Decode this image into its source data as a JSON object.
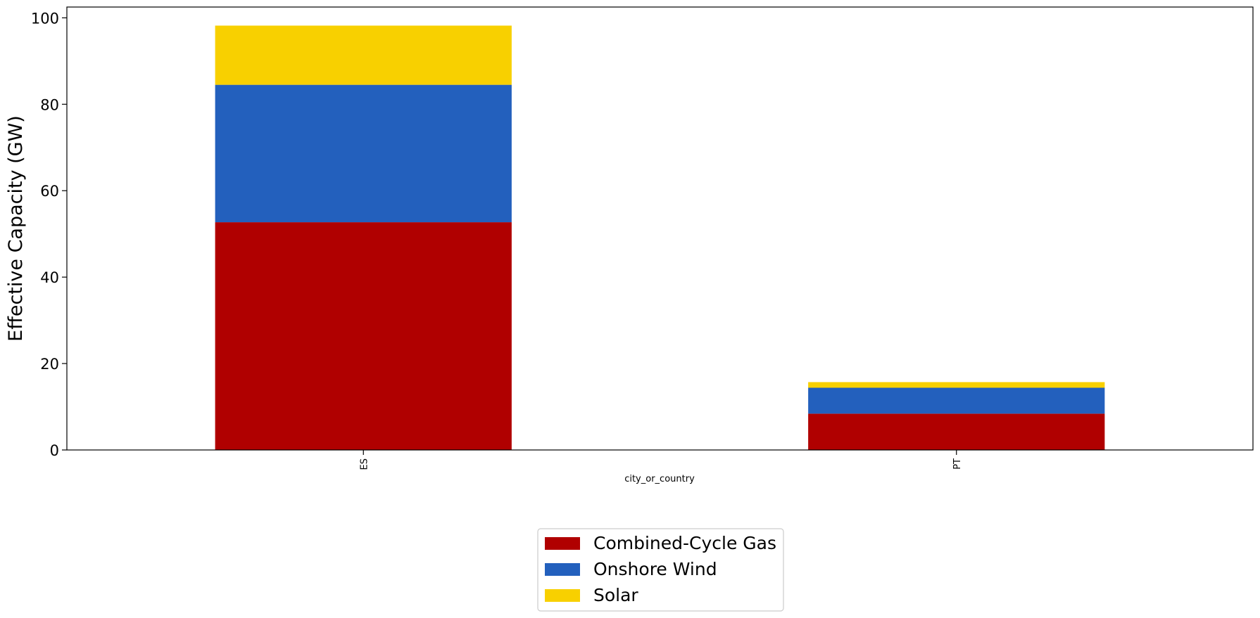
{
  "chart_data": {
    "type": "bar",
    "stacked": true,
    "title": "",
    "xlabel": "city_or_country",
    "ylabel": "Effective Capacity (GW)",
    "categories": [
      "ES",
      "PT"
    ],
    "series": [
      {
        "name": "Combined-Cycle Gas",
        "color": "#b00000",
        "values": [
          52.7,
          8.4
        ]
      },
      {
        "name": "Onshore Wind",
        "color": "#2360bd",
        "values": [
          31.8,
          6.0
        ]
      },
      {
        "name": "Solar",
        "color": "#f8d000",
        "values": [
          13.7,
          1.3
        ]
      }
    ],
    "ylim": [
      0,
      102.5
    ],
    "yticks": [
      0,
      20,
      40,
      60,
      80,
      100
    ],
    "grid": false,
    "legend": {
      "position": "bottom-center"
    }
  }
}
